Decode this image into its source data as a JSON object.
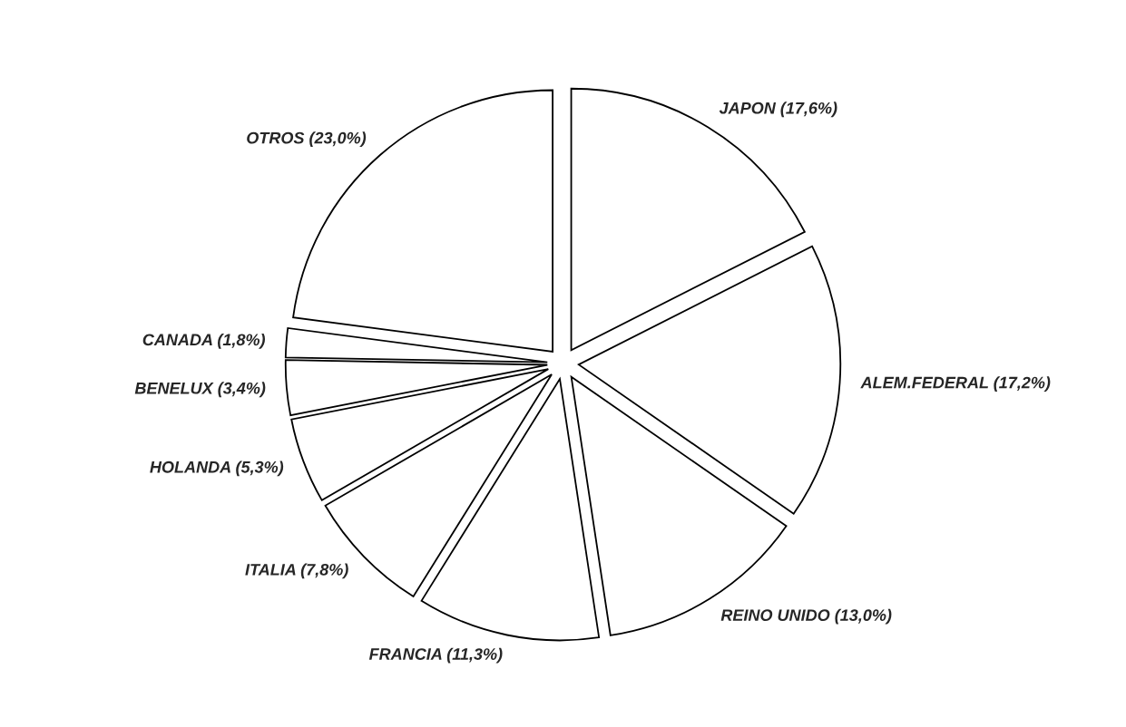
{
  "chart_data": {
    "type": "pie",
    "categories": [
      "JAPON",
      "ALEM.FEDERAL",
      "REINO UNIDO",
      "FRANCIA",
      "ITALIA",
      "HOLANDA",
      "BENELUX",
      "CANADA",
      "OTROS"
    ],
    "values": [
      17.6,
      17.2,
      13.0,
      11.3,
      7.8,
      5.3,
      3.4,
      1.8,
      23.0
    ],
    "value_labels": [
      "(17,6%)",
      "(17,2%)",
      "(13,0%)",
      "(11,3%)",
      "(7,8%)",
      "(5,3%)",
      "(3,4%)",
      "(1,8%)",
      "(23,0%)"
    ],
    "colors": [
      "#ffffff",
      "#ffffff",
      "#ffffff",
      "#ffffff",
      "#ffffff",
      "#ffffff",
      "#ffffff",
      "#ffffff",
      "#ffffff"
    ]
  }
}
